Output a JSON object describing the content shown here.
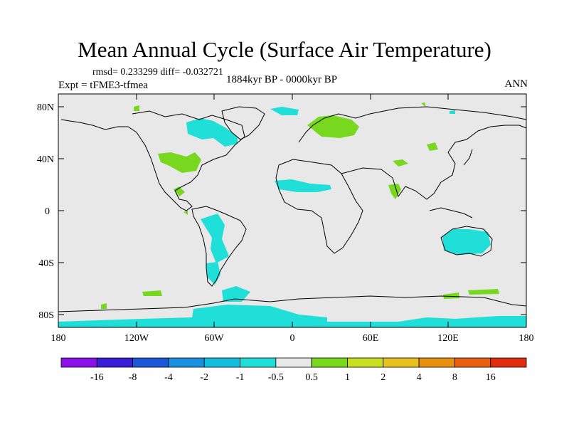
{
  "title": "Mean Annual Cycle (Surface Air Temperature)",
  "stats_line": "rmsd= 0.233299 diff= -0.032721",
  "experiment": "Expt = tFME3-tfmea",
  "period": "1884kyr BP - 0000kyr BP",
  "season": "ANN",
  "lat_labels": [
    "80N",
    "40N",
    "0",
    "40S",
    "80S"
  ],
  "lon_labels": [
    "180",
    "120W",
    "60W",
    "0",
    "60E",
    "120E",
    "180"
  ],
  "colorbar": {
    "labels": [
      "-16",
      "-8",
      "-4",
      "-2",
      "-1",
      "-0.5",
      "0.5",
      "1",
      "2",
      "4",
      "8",
      "16"
    ],
    "colors": [
      "#8a12e8",
      "#3a1ed6",
      "#1a58d8",
      "#1a90e0",
      "#14bde0",
      "#20ded8",
      "#e8e8e8",
      "#78d820",
      "#c8e020",
      "#e8c020",
      "#e89010",
      "#e86010",
      "#e02c10"
    ]
  },
  "colors": {
    "background": "#e8e8e8",
    "cool_anomaly": "#20ded8",
    "warm_anomaly": "#78d820",
    "coastline": "#000000"
  }
}
